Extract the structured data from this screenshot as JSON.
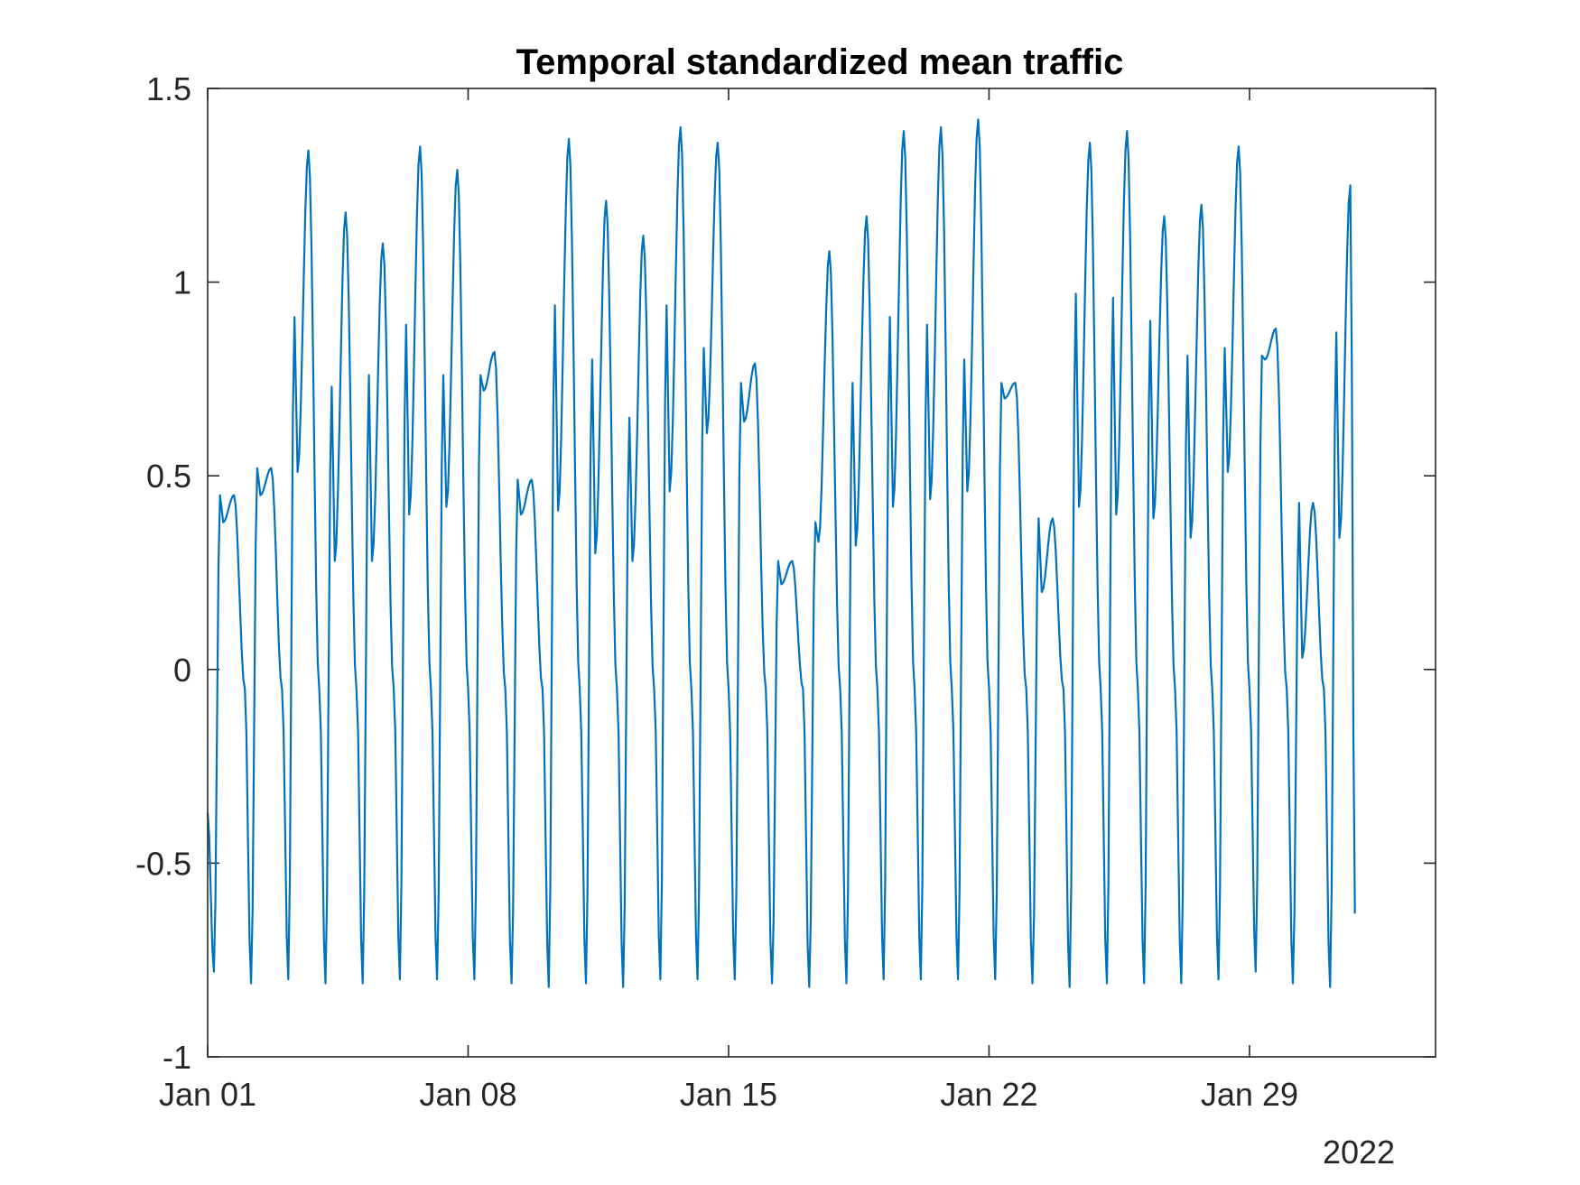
{
  "chart_data": {
    "type": "line",
    "title": "Temporal standardized mean traffic",
    "xlabel": "",
    "ylabel": "",
    "x_axis_year_label": "2022",
    "xlim": [
      "2022-01-01",
      "2022-02-03"
    ],
    "ylim": [
      -1,
      1.5
    ],
    "x_ticks": [
      {
        "date": "2022-01-01",
        "label": "Jan 01"
      },
      {
        "date": "2022-01-08",
        "label": "Jan 08"
      },
      {
        "date": "2022-01-15",
        "label": "Jan 15"
      },
      {
        "date": "2022-01-22",
        "label": "Jan 22"
      },
      {
        "date": "2022-01-29",
        "label": "Jan 29"
      }
    ],
    "y_ticks": [
      {
        "value": -1,
        "label": "-1"
      },
      {
        "value": -0.5,
        "label": "-0.5"
      },
      {
        "value": 0,
        "label": "0"
      },
      {
        "value": 0.5,
        "label": "0.5"
      },
      {
        "value": 1,
        "label": "1"
      },
      {
        "value": 1.5,
        "label": "1.5"
      }
    ],
    "grid": false,
    "colors": {
      "series": "#0072BD",
      "axes": "#262626"
    },
    "series": [
      {
        "name": "",
        "daily_profile": {
          "start": "2022-01-01",
          "days": [
            {
              "min": -0.78,
              "peak1": 0.45,
              "mid": 0.38,
              "peak2": 0.45
            },
            {
              "min": -0.81,
              "peak1": 0.52,
              "mid": 0.45,
              "peak2": 0.52
            },
            {
              "min": -0.8,
              "peak1": 0.91,
              "mid": 0.51,
              "peak2": 1.34
            },
            {
              "min": -0.81,
              "peak1": 0.73,
              "mid": 0.28,
              "peak2": 1.18
            },
            {
              "min": -0.81,
              "peak1": 0.76,
              "mid": 0.28,
              "peak2": 1.1
            },
            {
              "min": -0.8,
              "peak1": 0.89,
              "mid": 0.4,
              "peak2": 1.35
            },
            {
              "min": -0.8,
              "peak1": 0.76,
              "mid": 0.42,
              "peak2": 1.29
            },
            {
              "min": -0.8,
              "peak1": 0.76,
              "mid": 0.72,
              "peak2": 0.82
            },
            {
              "min": -0.81,
              "peak1": 0.49,
              "mid": 0.4,
              "peak2": 0.49
            },
            {
              "min": -0.82,
              "peak1": 0.94,
              "mid": 0.41,
              "peak2": 1.37
            },
            {
              "min": -0.81,
              "peak1": 0.8,
              "mid": 0.3,
              "peak2": 1.21
            },
            {
              "min": -0.82,
              "peak1": 0.65,
              "mid": 0.28,
              "peak2": 1.12
            },
            {
              "min": -0.8,
              "peak1": 0.94,
              "mid": 0.46,
              "peak2": 1.4
            },
            {
              "min": -0.8,
              "peak1": 0.83,
              "mid": 0.61,
              "peak2": 1.36
            },
            {
              "min": -0.8,
              "peak1": 0.74,
              "mid": 0.64,
              "peak2": 0.79
            },
            {
              "min": -0.81,
              "peak1": 0.28,
              "mid": 0.22,
              "peak2": 0.28
            },
            {
              "min": -0.82,
              "peak1": 0.38,
              "mid": 0.33,
              "peak2": 1.08
            },
            {
              "min": -0.81,
              "peak1": 0.74,
              "mid": 0.32,
              "peak2": 1.17
            },
            {
              "min": -0.8,
              "peak1": 0.91,
              "mid": 0.42,
              "peak2": 1.39
            },
            {
              "min": -0.8,
              "peak1": 0.89,
              "mid": 0.44,
              "peak2": 1.4
            },
            {
              "min": -0.8,
              "peak1": 0.8,
              "mid": 0.46,
              "peak2": 1.42
            },
            {
              "min": -0.8,
              "peak1": 0.74,
              "mid": 0.7,
              "peak2": 0.74
            },
            {
              "min": -0.81,
              "peak1": 0.39,
              "mid": 0.2,
              "peak2": 0.39
            },
            {
              "min": -0.82,
              "peak1": 0.97,
              "mid": 0.42,
              "peak2": 1.36
            },
            {
              "min": -0.81,
              "peak1": 0.96,
              "mid": 0.4,
              "peak2": 1.39
            },
            {
              "min": -0.81,
              "peak1": 0.9,
              "mid": 0.39,
              "peak2": 1.17
            },
            {
              "min": -0.81,
              "peak1": 0.81,
              "mid": 0.34,
              "peak2": 1.2
            },
            {
              "min": -0.8,
              "peak1": 0.83,
              "mid": 0.51,
              "peak2": 1.35
            },
            {
              "min": -0.78,
              "peak1": 0.81,
              "mid": 0.8,
              "peak2": 0.88
            },
            {
              "min": -0.81,
              "peak1": 0.43,
              "mid": 0.03,
              "peak2": 0.43
            },
            {
              "min": -0.82,
              "peak1": 0.87,
              "mid": 0.34,
              "peak2": 1.25
            }
          ],
          "end_value": -0.63
        }
      }
    ]
  }
}
